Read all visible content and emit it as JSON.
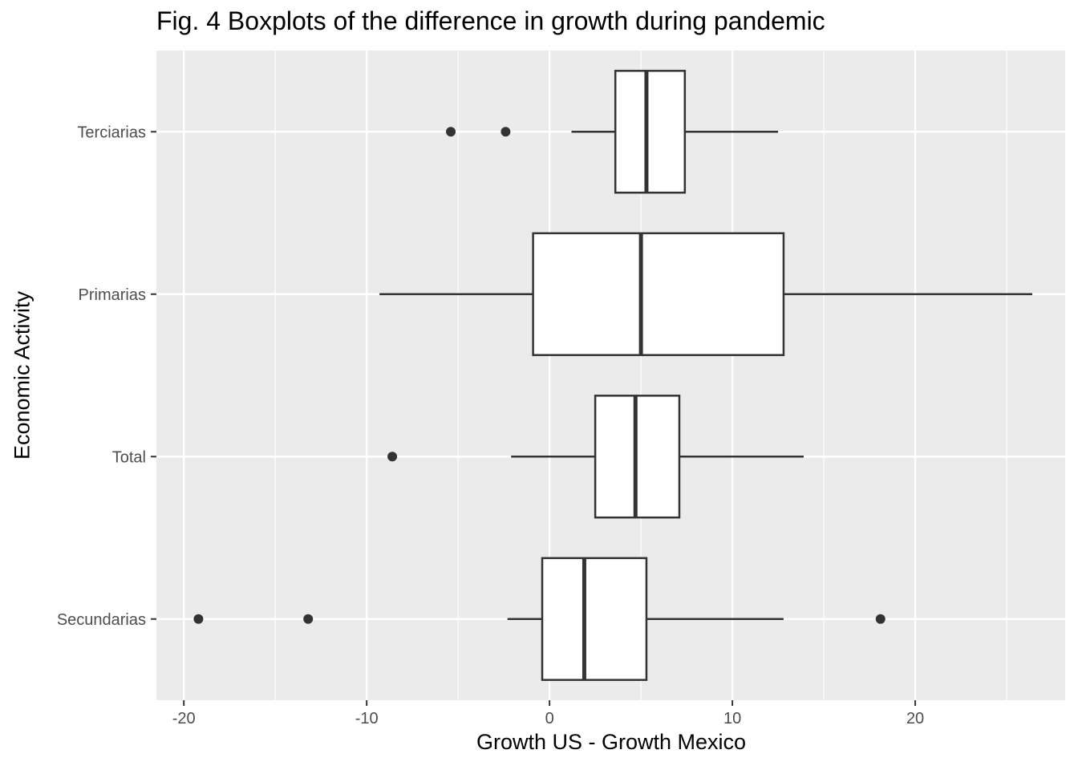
{
  "chart_data": {
    "type": "boxplot",
    "title": "Fig. 4 Boxplots of the difference in growth during pandemic",
    "xlabel": "Growth US - Growth Mexico",
    "ylabel": "Economic Activity",
    "xlim": [
      -21.5,
      28.2
    ],
    "x_ticks": [
      -20,
      -10,
      0,
      10,
      20
    ],
    "x_tick_labels": [
      "-20",
      "-10",
      "0",
      "10",
      "20"
    ],
    "categories": [
      "Terciarias",
      "Primarias",
      "Total",
      "Secundarias"
    ],
    "series": [
      {
        "category": "Terciarias",
        "whisker_low": 1.2,
        "q1": 3.6,
        "median": 5.3,
        "q3": 7.4,
        "whisker_high": 12.5,
        "outliers": [
          -5.4,
          -2.4
        ]
      },
      {
        "category": "Primarias",
        "whisker_low": -9.3,
        "q1": -0.9,
        "median": 5.0,
        "q3": 12.8,
        "whisker_high": 26.4,
        "outliers": []
      },
      {
        "category": "Total",
        "whisker_low": -2.1,
        "q1": 2.5,
        "median": 4.7,
        "q3": 7.1,
        "whisker_high": 13.9,
        "outliers": [
          -8.6
        ]
      },
      {
        "category": "Secundarias",
        "whisker_low": -2.3,
        "q1": -0.4,
        "median": 1.9,
        "q3": 5.3,
        "whisker_high": 12.8,
        "outliers": [
          -19.2,
          -13.2,
          18.1
        ]
      }
    ],
    "grid": true,
    "legend": "none",
    "colors": {
      "panel": "#ebebeb",
      "grid": "#ffffff",
      "box_fill": "#ffffff",
      "box_stroke": "#333333",
      "point": "#333333",
      "tick_text": "#4d4d4d"
    }
  }
}
